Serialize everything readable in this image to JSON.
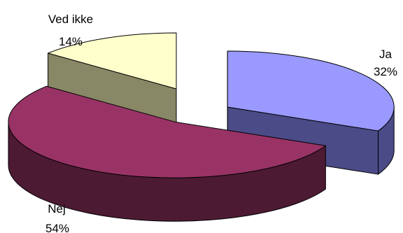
{
  "chart_data": {
    "type": "pie",
    "style": "3d-exploded",
    "categories": [
      "Ja",
      "Nej",
      "Ved ikke"
    ],
    "values": [
      32,
      54,
      14
    ],
    "labels": [
      "32%",
      "54%",
      "14%"
    ],
    "colors": {
      "Ja": {
        "top": "#9999ff",
        "side": "#4b4b87"
      },
      "Nej": {
        "top": "#993366",
        "side": "#4d1a33"
      },
      "Ved ikke": {
        "top": "#ffffcc",
        "side": "#888866"
      }
    },
    "edge_color": "#000000"
  }
}
